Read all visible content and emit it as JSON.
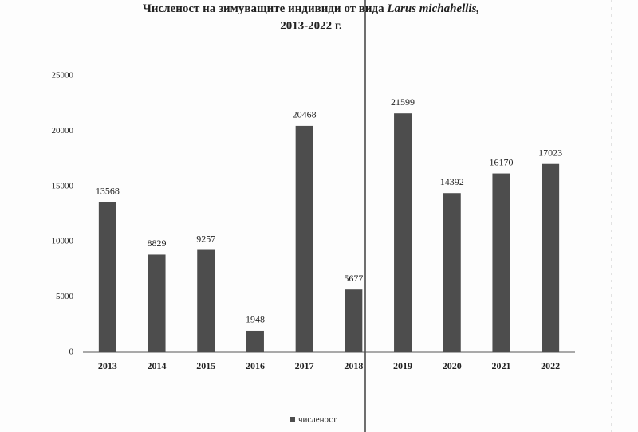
{
  "chart_data": {
    "type": "bar",
    "title": {
      "text": "Численост на зимуващите индивиди от вида",
      "species": "Larus michahellis,"
    },
    "subtitle": "2013-2022 г.",
    "categories": [
      "2013",
      "2014",
      "2015",
      "2016",
      "2017",
      "2018",
      "2019",
      "2020",
      "2021",
      "2022"
    ],
    "series": [
      {
        "name": "численост",
        "color": "#4d4d4d",
        "values": [
          13568,
          8829,
          9257,
          1948,
          20468,
          5677,
          21599,
          14392,
          16170,
          17023
        ]
      }
    ],
    "ylim": [
      0,
      25000
    ],
    "yticks": [
      0,
      5000,
      10000,
      15000,
      20000,
      25000
    ],
    "grid": false,
    "legend": "bottom"
  }
}
